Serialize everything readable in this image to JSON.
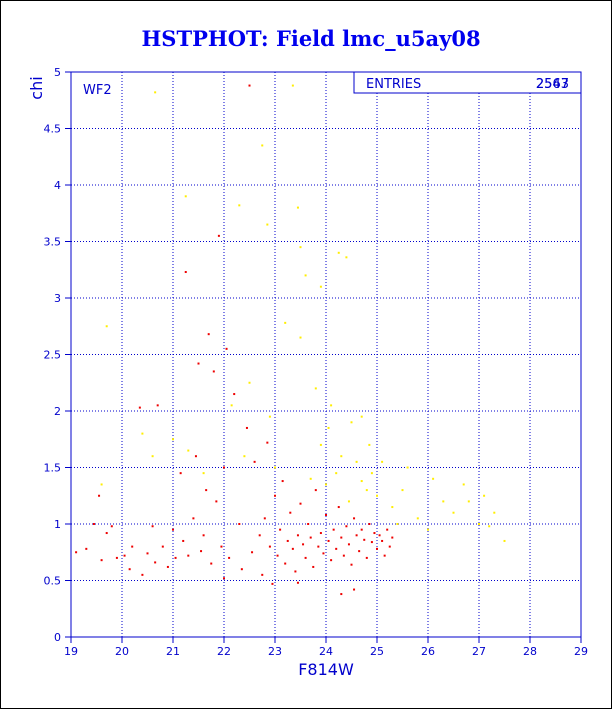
{
  "chart_data": {
    "type": "scatter",
    "title": "HSTPHOT: Field lmc_u5ay08",
    "xlabel": "F814W",
    "ylabel": "chi",
    "panel_label": "WF2",
    "xlim": [
      19,
      29
    ],
    "ylim": [
      0,
      5
    ],
    "xticks": [
      "19",
      "20",
      "21",
      "22",
      "23",
      "24",
      "25",
      "26",
      "27",
      "28",
      "29"
    ],
    "yticks": [
      "0",
      "0.5",
      "1",
      "1.5",
      "2",
      "2.5",
      "3",
      "3.5",
      "4",
      "4.5",
      "5"
    ],
    "grid": true,
    "stats_box": {
      "label": "ENTRIES",
      "values": [
        "2547",
        "2563"
      ]
    },
    "colors": {
      "title": "#0000ee",
      "axis": "#0000cc",
      "primary_points": "#ee0000",
      "secondary_points": "#ffee00"
    },
    "series": [
      {
        "color": "#ee0000",
        "points": [
          [
            19.1,
            0.75
          ],
          [
            19.3,
            0.78
          ],
          [
            19.45,
            1.0
          ],
          [
            19.55,
            1.25
          ],
          [
            19.6,
            0.68
          ],
          [
            19.7,
            0.92
          ],
          [
            19.8,
            0.98
          ],
          [
            19.9,
            0.7
          ],
          [
            20.05,
            0.72
          ],
          [
            20.15,
            0.6
          ],
          [
            20.2,
            0.8
          ],
          [
            20.35,
            2.03
          ],
          [
            20.4,
            0.55
          ],
          [
            20.5,
            0.74
          ],
          [
            20.6,
            0.98
          ],
          [
            20.65,
            0.66
          ],
          [
            20.7,
            2.05
          ],
          [
            20.8,
            0.8
          ],
          [
            20.9,
            0.62
          ],
          [
            21.0,
            0.95
          ],
          [
            21.05,
            0.7
          ],
          [
            21.15,
            1.45
          ],
          [
            21.2,
            0.85
          ],
          [
            21.25,
            3.23
          ],
          [
            21.3,
            0.72
          ],
          [
            21.4,
            1.05
          ],
          [
            21.45,
            1.6
          ],
          [
            21.5,
            2.42
          ],
          [
            21.55,
            0.76
          ],
          [
            21.6,
            0.9
          ],
          [
            21.65,
            1.3
          ],
          [
            21.7,
            2.68
          ],
          [
            21.75,
            0.65
          ],
          [
            21.8,
            2.35
          ],
          [
            21.85,
            1.2
          ],
          [
            21.9,
            3.55
          ],
          [
            21.95,
            0.8
          ],
          [
            22.0,
            1.5
          ],
          [
            22.05,
            2.55
          ],
          [
            22.1,
            0.7
          ],
          [
            22.2,
            2.15
          ],
          [
            22.3,
            1.0
          ],
          [
            22.35,
            0.6
          ],
          [
            22.45,
            1.85
          ],
          [
            22.5,
            4.88
          ],
          [
            22.55,
            0.75
          ],
          [
            22.6,
            1.55
          ],
          [
            22.7,
            0.9
          ],
          [
            22.75,
            0.55
          ],
          [
            22.8,
            1.05
          ],
          [
            22.85,
            1.72
          ],
          [
            22.9,
            0.8
          ],
          [
            22.95,
            0.47
          ],
          [
            23.0,
            1.25
          ],
          [
            23.05,
            0.72
          ],
          [
            23.1,
            0.95
          ],
          [
            23.15,
            1.38
          ],
          [
            23.2,
            0.65
          ],
          [
            23.25,
            0.85
          ],
          [
            23.3,
            1.1
          ],
          [
            23.35,
            0.78
          ],
          [
            23.4,
            0.58
          ],
          [
            23.45,
            0.9
          ],
          [
            23.5,
            1.18
          ],
          [
            23.55,
            0.82
          ],
          [
            23.6,
            0.7
          ],
          [
            23.65,
            1.0
          ],
          [
            23.7,
            0.88
          ],
          [
            23.75,
            0.62
          ],
          [
            23.8,
            1.3
          ],
          [
            23.85,
            0.8
          ],
          [
            23.9,
            0.92
          ],
          [
            23.95,
            0.74
          ],
          [
            24.0,
            1.08
          ],
          [
            24.05,
            0.85
          ],
          [
            24.1,
            0.68
          ],
          [
            24.15,
            0.95
          ],
          [
            24.2,
            0.78
          ],
          [
            24.25,
            1.15
          ],
          [
            24.3,
            0.88
          ],
          [
            24.35,
            0.72
          ],
          [
            24.4,
            0.98
          ],
          [
            24.45,
            0.82
          ],
          [
            24.5,
            0.64
          ],
          [
            24.55,
            1.05
          ],
          [
            24.6,
            0.9
          ],
          [
            24.65,
            0.76
          ],
          [
            24.7,
            0.95
          ],
          [
            24.75,
            0.86
          ],
          [
            24.8,
            0.7
          ],
          [
            24.85,
            1.0
          ],
          [
            24.9,
            0.84
          ],
          [
            24.95,
            0.92
          ],
          [
            25.0,
            0.78
          ],
          [
            25.05,
            0.9
          ],
          [
            25.1,
            0.85
          ],
          [
            25.15,
            0.72
          ],
          [
            25.2,
            0.95
          ],
          [
            25.25,
            0.8
          ],
          [
            25.3,
            0.88
          ],
          [
            24.55,
            0.42
          ],
          [
            24.3,
            0.38
          ],
          [
            23.45,
            0.48
          ],
          [
            22.0,
            0.52
          ]
        ]
      },
      {
        "color": "#ffee00",
        "points": [
          [
            20.65,
            4.82
          ],
          [
            23.35,
            4.88
          ],
          [
            22.75,
            4.35
          ],
          [
            21.25,
            3.9
          ],
          [
            22.3,
            3.82
          ],
          [
            23.45,
            3.8
          ],
          [
            22.85,
            3.65
          ],
          [
            23.5,
            3.45
          ],
          [
            24.25,
            3.4
          ],
          [
            24.4,
            3.36
          ],
          [
            23.6,
            3.2
          ],
          [
            23.9,
            3.1
          ],
          [
            23.2,
            2.78
          ],
          [
            23.5,
            2.65
          ],
          [
            19.7,
            2.75
          ],
          [
            22.5,
            2.25
          ],
          [
            22.15,
            2.05
          ],
          [
            23.8,
            2.2
          ],
          [
            24.1,
            2.05
          ],
          [
            24.5,
            1.9
          ],
          [
            24.7,
            1.95
          ],
          [
            23.9,
            1.7
          ],
          [
            24.3,
            1.6
          ],
          [
            24.6,
            1.55
          ],
          [
            24.9,
            1.45
          ],
          [
            25.1,
            1.55
          ],
          [
            25.5,
            1.3
          ],
          [
            26.1,
            1.4
          ],
          [
            26.3,
            1.2
          ],
          [
            26.5,
            1.1
          ],
          [
            26.8,
            1.2
          ],
          [
            27.0,
            1.0
          ],
          [
            27.3,
            1.1
          ],
          [
            27.5,
            0.85
          ],
          [
            25.8,
            1.05
          ],
          [
            26.0,
            0.95
          ],
          [
            24.0,
            1.35
          ],
          [
            24.2,
            1.45
          ],
          [
            24.8,
            1.3
          ],
          [
            25.3,
            1.15
          ],
          [
            21.0,
            1.75
          ],
          [
            20.6,
            1.6
          ],
          [
            19.6,
            1.35
          ],
          [
            21.6,
            1.45
          ],
          [
            22.4,
            1.6
          ],
          [
            23.0,
            1.5
          ],
          [
            24.45,
            1.2
          ],
          [
            25.0,
            1.25
          ],
          [
            24.7,
            1.38
          ],
          [
            25.6,
            1.5
          ],
          [
            26.7,
            1.35
          ],
          [
            27.2,
            0.98
          ],
          [
            20.4,
            1.8
          ],
          [
            22.9,
            1.95
          ],
          [
            25.4,
            1.0
          ],
          [
            27.1,
            1.25
          ],
          [
            21.3,
            1.65
          ],
          [
            24.05,
            1.85
          ],
          [
            24.85,
            1.7
          ],
          [
            23.7,
            1.4
          ]
        ]
      }
    ]
  }
}
